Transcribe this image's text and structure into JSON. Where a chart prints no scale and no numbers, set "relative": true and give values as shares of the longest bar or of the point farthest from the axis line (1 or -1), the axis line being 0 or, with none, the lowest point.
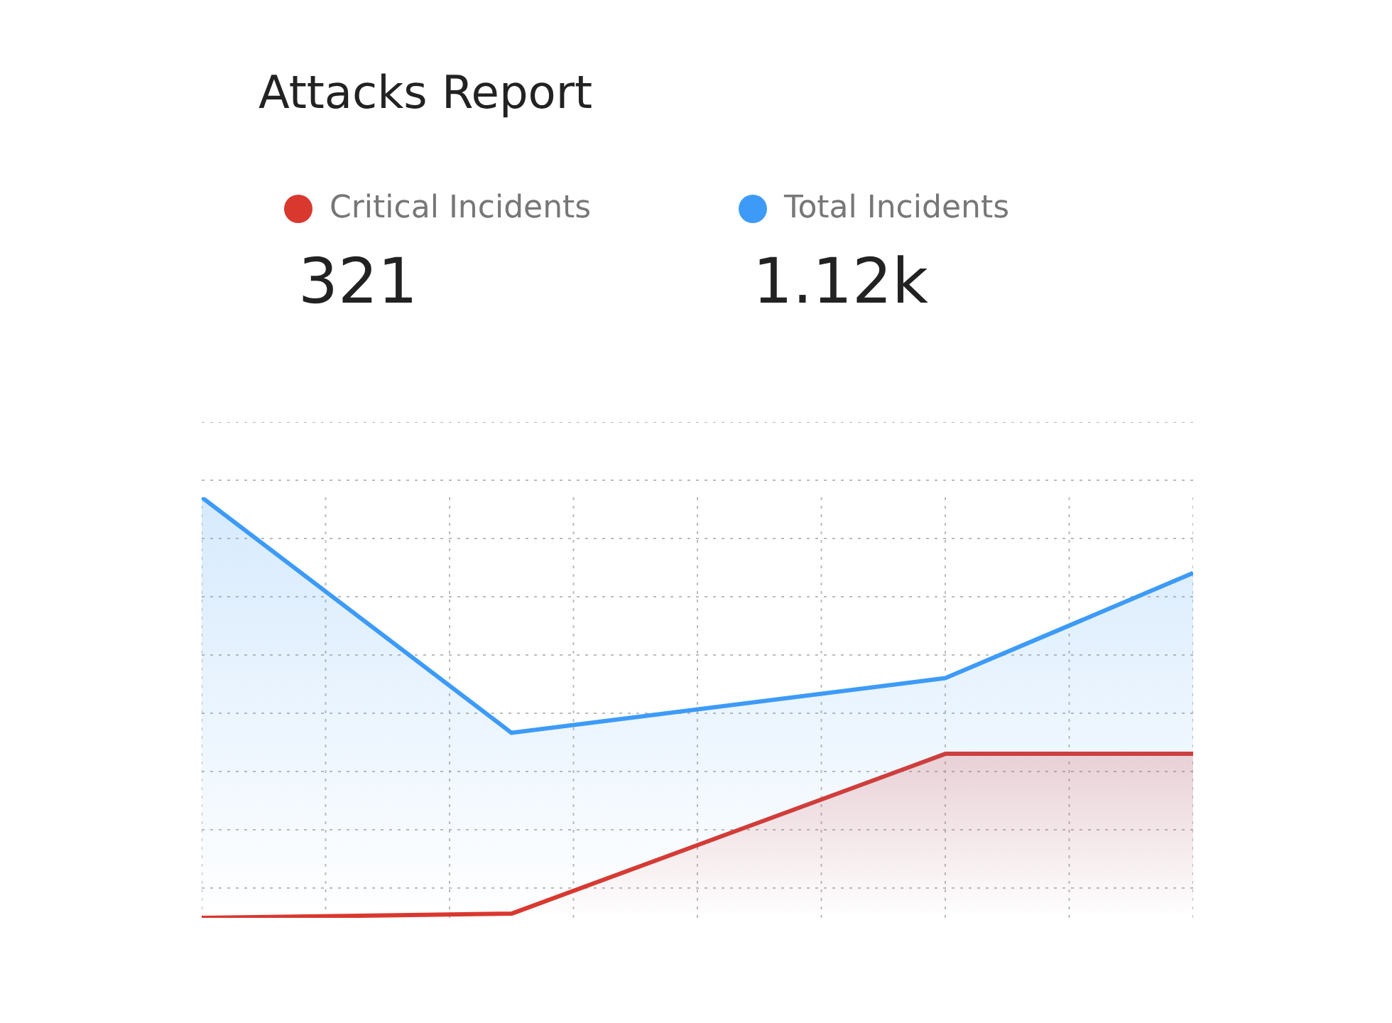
{
  "chart_data": {
    "type": "area",
    "title": "Attacks Report",
    "relative": true,
    "grid": true,
    "legend": "top left",
    "marker": "none",
    "categories": [
      null,
      null,
      null,
      null,
      null,
      null,
      null,
      null,
      null,
      null,
      null,
      null,
      null,
      null,
      null,
      null,
      null
    ],
    "series": [
      {
        "name": "Critical Incidents",
        "color": "#d9382f",
        "values": [
          0,
          null,
          null,
          null,
          null,
          0.01,
          null,
          null,
          null,
          null,
          null,
          null,
          0.39,
          null,
          null,
          null,
          0.39
        ]
      },
      {
        "name": "Total Incidents",
        "color": "#3d9bf7",
        "values": [
          1,
          null,
          null,
          null,
          null,
          0.44,
          null,
          null,
          null,
          null,
          null,
          null,
          0.57,
          null,
          null,
          null,
          0.82
        ]
      }
    ],
    "annotations": [
      "321",
      "1.12k"
    ]
  }
}
